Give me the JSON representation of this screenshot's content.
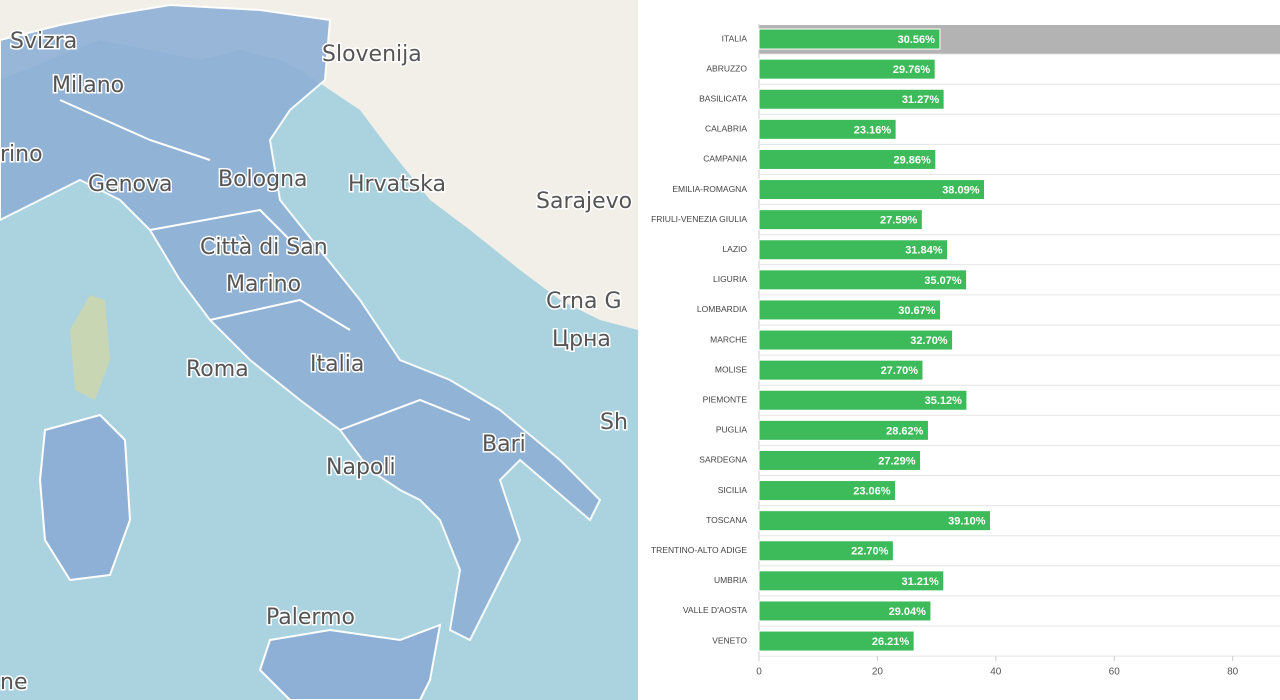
{
  "map": {
    "labels": [
      "Svizra",
      "Milano",
      "rino",
      "Genova",
      "Bologna",
      "Slovenija",
      "Hrvatska",
      "Sarajevo",
      "Città di San",
      "Marino",
      "Roma",
      "Italia",
      "Crna G",
      "Црна",
      "Sh",
      "Bari",
      "Napoli",
      "Palermo",
      "ne"
    ]
  },
  "chart_data": {
    "type": "bar",
    "orientation": "horizontal",
    "categories": [
      "ITALIA",
      "ABRUZZO",
      "BASILICATA",
      "CALABRIA",
      "CAMPANIA",
      "EMILIA-ROMAGNA",
      "FRIULI-VENEZIA GIULIA",
      "LAZIO",
      "LIGURIA",
      "LOMBARDIA",
      "MARCHE",
      "MOLISE",
      "PIEMONTE",
      "PUGLIA",
      "SARDEGNA",
      "SICILIA",
      "TOSCANA",
      "TRENTINO-ALTO ADIGE",
      "UMBRIA",
      "VALLE D'AOSTA",
      "VENETO"
    ],
    "values": [
      30.56,
      29.76,
      31.27,
      23.16,
      29.86,
      38.09,
      27.59,
      31.84,
      35.07,
      30.67,
      32.7,
      27.7,
      35.12,
      28.62,
      27.29,
      23.06,
      39.1,
      22.7,
      31.21,
      29.04,
      26.21
    ],
    "value_labels": [
      "30.56%",
      "29.76%",
      "31.27%",
      "23.16%",
      "29.86%",
      "38.09%",
      "27.59%",
      "31.84%",
      "35.07%",
      "30.67%",
      "32.70%",
      "27.70%",
      "35.12%",
      "28.62%",
      "27.29%",
      "23.06%",
      "39.10%",
      "22.70%",
      "31.21%",
      "29.04%",
      "26.21%"
    ],
    "color": "#3dbb5a",
    "xlim": [
      0,
      88
    ],
    "xticks": [
      0,
      20,
      40,
      60,
      80
    ]
  }
}
